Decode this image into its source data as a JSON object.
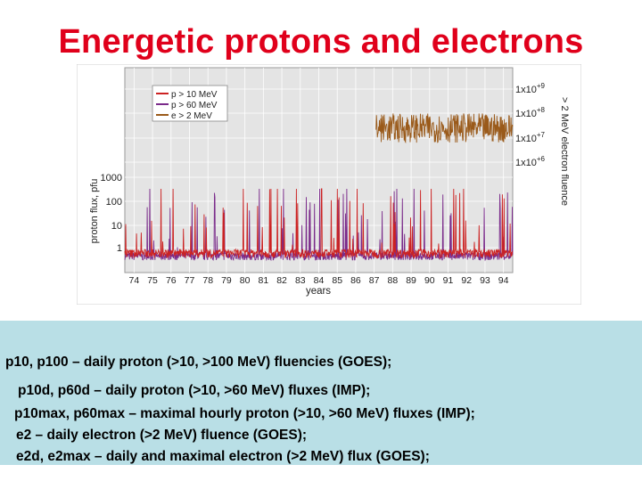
{
  "title": "Energetic protons and electrons",
  "chart_data": {
    "type": "line",
    "xlabel": "years",
    "ylabel": "proton flux, pfu",
    "y2label": "> 2 MeV electron fluence",
    "x_ticks": [
      "74",
      "75",
      "76",
      "77",
      "78",
      "79",
      "80",
      "81",
      "82",
      "83",
      "84",
      "85",
      "86",
      "87",
      "88",
      "89",
      "90",
      "91",
      "92",
      "93",
      "94"
    ],
    "xlim": [
      1974,
      1995
    ],
    "y_scale": "log",
    "y_ticks": [
      "1",
      "10",
      "100",
      "1000"
    ],
    "y2_scale": "log",
    "y2_ticks": [
      "1x10+6",
      "1x10+7",
      "1x10+8",
      "1x10+9"
    ],
    "grid": true,
    "legend_position": "top-left",
    "series": [
      {
        "name": "p > 10 MeV",
        "color": "#cc2222",
        "axis": "left"
      },
      {
        "name": "p > 60 MeV",
        "color": "#7a2a8a",
        "axis": "left"
      },
      {
        "name": "e > 2 MeV",
        "color": "#9a5a1a",
        "axis": "right",
        "x_range": [
          1987.6,
          1995
        ]
      }
    ]
  },
  "notes": [
    "p10, p100 – daily proton (>10, >100 MeV) fluencies (GOES);",
    "p10d, p60d – daily proton (>10, >60 MeV) fluxes (IMP);",
    "p10max, p60max – maximal hourly proton (>10, >60 MeV) fluxes (IMP);",
    "e2 – daily electron (>2 MeV) fluence (GOES);",
    "e2d, e2max – daily and maximal electron (>2 MeV) flux (GOES);"
  ]
}
